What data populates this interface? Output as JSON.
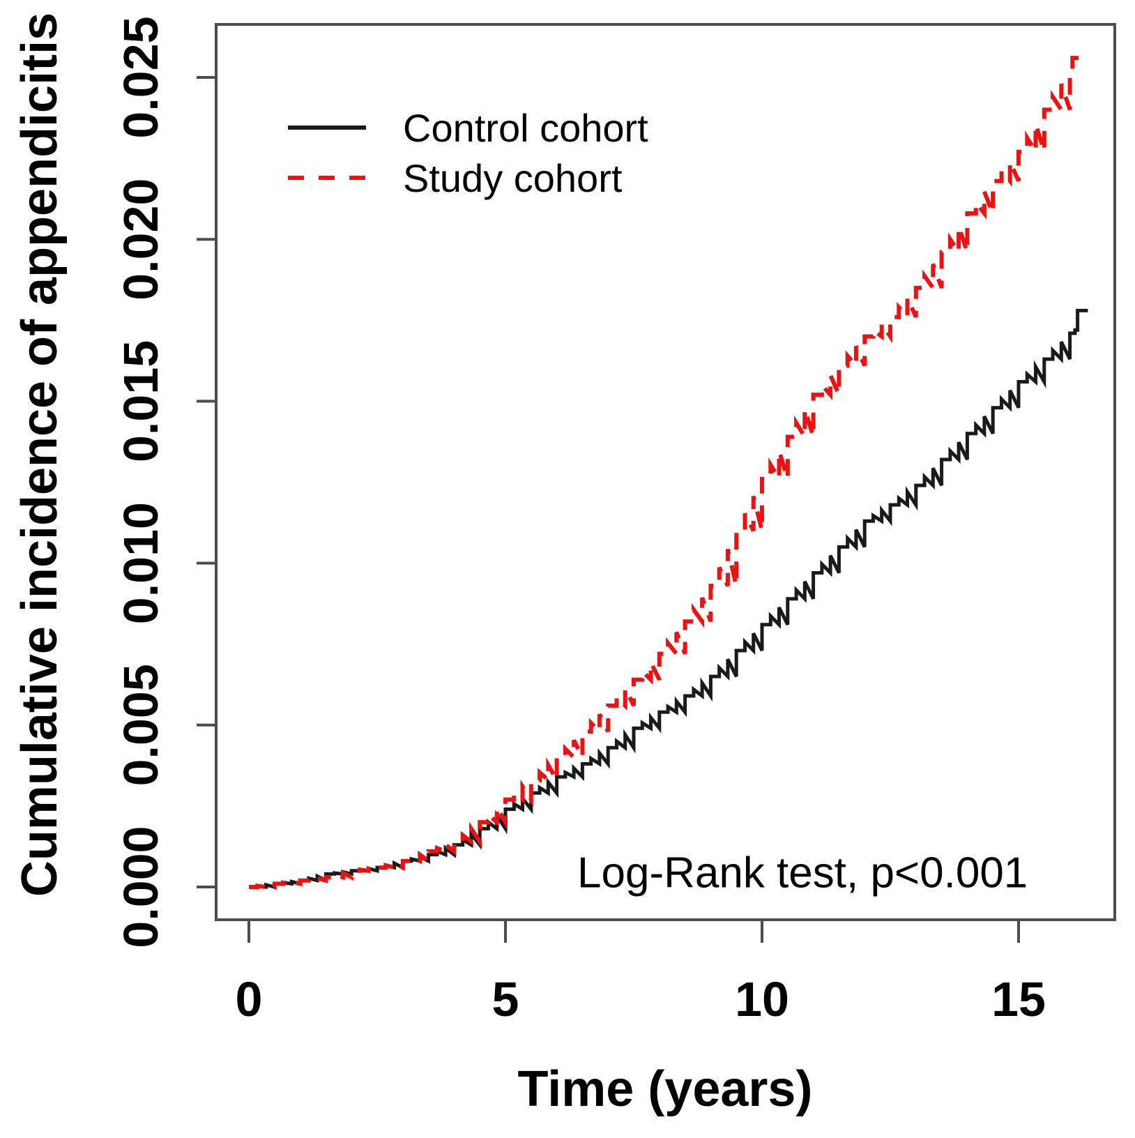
{
  "chart_data": {
    "type": "line",
    "subtype": "kaplan-meier-cumulative-incidence",
    "title": "",
    "xlabel": "Time (years)",
    "ylabel": "Cumulative incidence of appendicitis",
    "annotation": "Log-Rank test, p<0.001",
    "x_ticks": [
      0,
      5,
      10,
      15
    ],
    "y_tick_labels": [
      "0.000",
      "0.005",
      "0.010",
      "0.015",
      "0.020",
      "0.025"
    ],
    "xlim": [
      -0.65,
      16.9
    ],
    "ylim": [
      -0.001,
      0.0266
    ],
    "grid": false,
    "legend_position": "top-left",
    "frame_color": "#4d4d4d",
    "series": [
      {
        "name": "Control cohort",
        "color": "#1a1a1a",
        "line_style": "solid",
        "x": [
          0,
          0.5,
          1,
          1.5,
          2,
          2.5,
          3,
          3.5,
          4,
          4.5,
          5,
          5.5,
          6,
          6.5,
          7,
          7.5,
          8,
          8.5,
          9,
          9.5,
          10,
          10.5,
          11,
          11.5,
          12,
          12.5,
          13,
          13.5,
          14,
          14.5,
          15,
          15.5,
          16,
          16.1,
          16.15,
          16.35
        ],
        "y": [
          0.0,
          0.0001,
          0.0002,
          0.0004,
          0.0005,
          0.0006,
          0.0008,
          0.001,
          0.0013,
          0.0018,
          0.0024,
          0.0029,
          0.0034,
          0.0038,
          0.0043,
          0.0049,
          0.0054,
          0.0059,
          0.0065,
          0.0073,
          0.0081,
          0.0089,
          0.0097,
          0.0105,
          0.0113,
          0.0118,
          0.0124,
          0.0132,
          0.014,
          0.0148,
          0.0156,
          0.0163,
          0.0171,
          0.0172,
          0.0178,
          0.0178
        ]
      },
      {
        "name": "Study cohort",
        "color": "#ee1111",
        "line_style": "dashed",
        "x": [
          0,
          0.5,
          1,
          1.5,
          2,
          2.5,
          3,
          3.5,
          4,
          4.5,
          5,
          5.5,
          6,
          6.5,
          7,
          7.5,
          8,
          8.5,
          9,
          9.5,
          10,
          10.5,
          11,
          11.5,
          12,
          12.5,
          13,
          13.5,
          14,
          14.5,
          15,
          15.5,
          16,
          16.05,
          16.2
        ],
        "y": [
          0.0,
          0.0001,
          0.0002,
          0.0003,
          0.0005,
          0.0006,
          0.0008,
          0.0011,
          0.0014,
          0.002,
          0.0027,
          0.0033,
          0.004,
          0.0048,
          0.0056,
          0.0064,
          0.0072,
          0.0082,
          0.0093,
          0.011,
          0.0126,
          0.0139,
          0.0152,
          0.0161,
          0.017,
          0.0176,
          0.0185,
          0.0196,
          0.0208,
          0.0218,
          0.0227,
          0.024,
          0.0252,
          0.0256,
          0.0256
        ]
      }
    ]
  }
}
